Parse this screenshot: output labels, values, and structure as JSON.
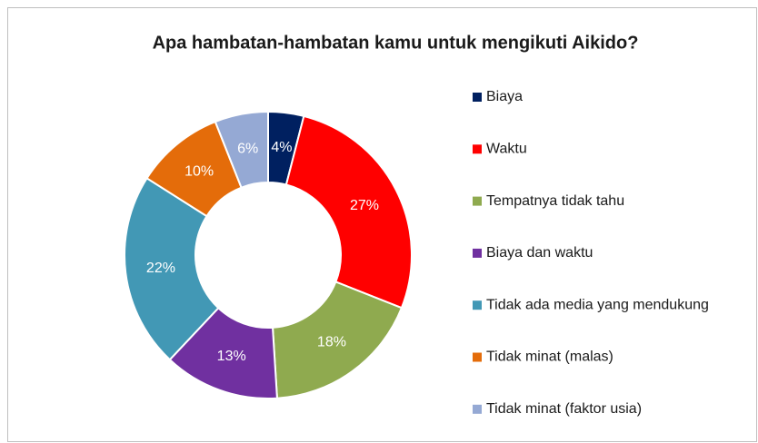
{
  "chart_data": {
    "type": "donut",
    "title": "Apa hambatan-hambatan kamu untuk mengikuti Aikido?",
    "categories": [
      "Biaya",
      "Waktu",
      "Tempatnya tidak tahu",
      "Biaya dan waktu",
      "Tidak ada media yang mendukung",
      "Tidak minat (malas)",
      "Tidak minat (faktor usia)"
    ],
    "values": [
      4,
      27,
      18,
      13,
      22,
      10,
      6
    ],
    "value_labels": [
      "4%",
      "27%",
      "18%",
      "13%",
      "22%",
      "10%",
      "6%"
    ],
    "colors": [
      "#002060",
      "#ff0000",
      "#8faa4f",
      "#7030a0",
      "#4298b5",
      "#e46c0a",
      "#95a9d4"
    ],
    "legend": "right"
  }
}
